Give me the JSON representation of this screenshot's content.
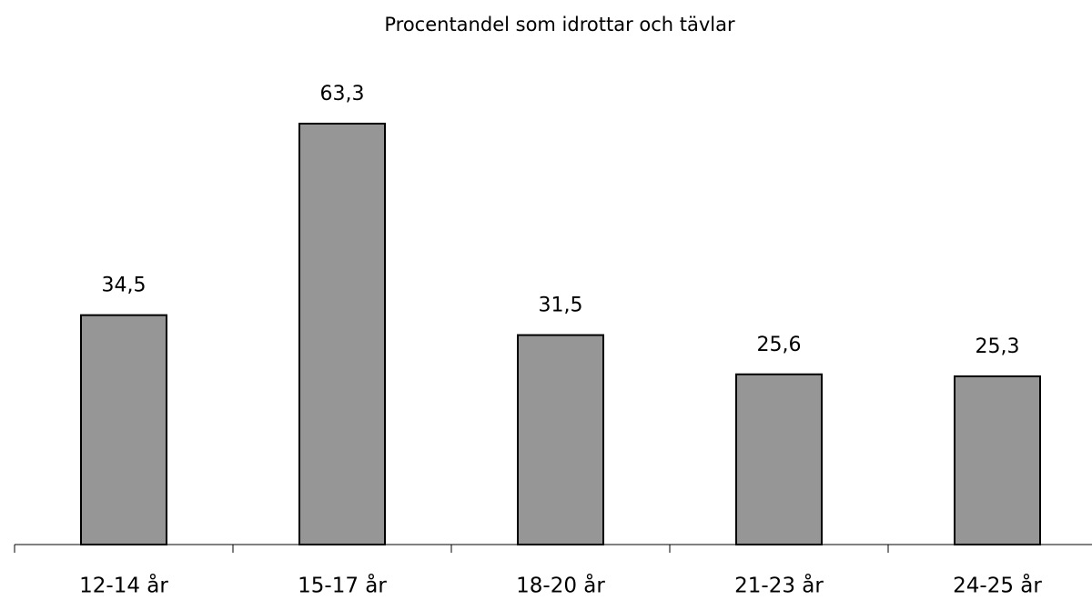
{
  "chart_data": {
    "type": "bar",
    "title": "Procentandel som idrottar och tävlar",
    "categories": [
      "12-14 år",
      "15-17 år",
      "18-20 år",
      "21-23 år",
      "24-25 år"
    ],
    "values": [
      34.5,
      63.3,
      31.5,
      25.6,
      25.3
    ],
    "value_labels": [
      "34,5",
      "63,3",
      "31,5",
      "25,6",
      "25,3"
    ],
    "color": "#969696",
    "ylim": [
      0,
      70
    ]
  }
}
